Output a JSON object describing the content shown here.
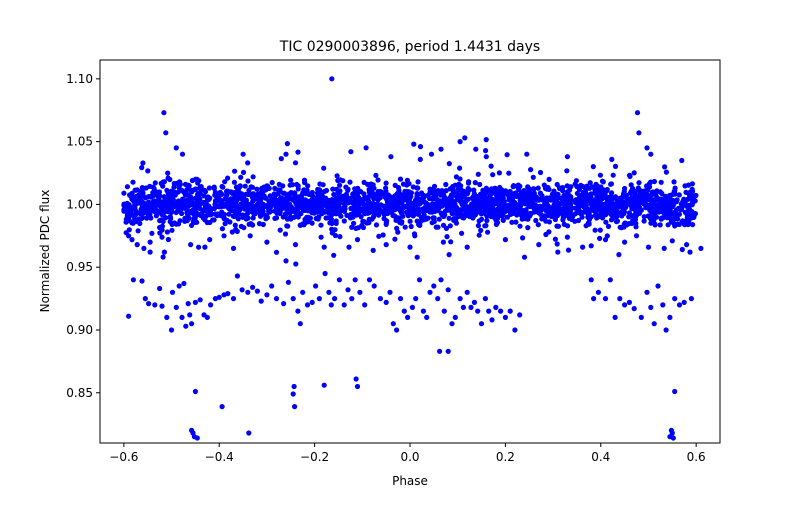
{
  "chart_data": {
    "type": "scatter",
    "title": "TIC 0290003896, period 1.4431 days",
    "xlabel": "Phase",
    "ylabel": "Normalized PDC flux",
    "xlim": [
      -0.65,
      0.65
    ],
    "ylim": [
      0.81,
      1.115
    ],
    "x_ticks": [
      -0.6,
      -0.4,
      -0.2,
      0.0,
      0.2,
      0.4,
      0.6
    ],
    "x_tick_labels": [
      "−0.6",
      "−0.4",
      "−0.2",
      "0.0",
      "0.2",
      "0.4",
      "0.6"
    ],
    "y_ticks": [
      0.85,
      0.9,
      0.95,
      1.0,
      1.05,
      1.1
    ],
    "y_tick_labels": [
      "0.85",
      "0.90",
      "0.95",
      "1.00",
      "1.05",
      "1.10"
    ],
    "marker_color": "#0000ff",
    "dense_band": {
      "x_range": [
        -0.6,
        0.6
      ],
      "center": 1.0,
      "typical_spread": [
        0.985,
        1.015
      ],
      "sample_count": 2600
    },
    "series": [
      {
        "name": "flux",
        "points": [
          [
            -0.164,
            1.1
          ],
          [
            -0.516,
            1.073
          ],
          [
            0.477,
            1.073
          ],
          [
            -0.512,
            1.057
          ],
          [
            0.48,
            1.057
          ],
          [
            -0.49,
            1.045
          ],
          [
            0.497,
            1.045
          ],
          [
            0.115,
            1.053
          ],
          [
            0.105,
            1.05
          ],
          [
            0.008,
            1.048
          ],
          [
            0.022,
            1.046
          ],
          [
            0.065,
            1.044
          ],
          [
            0.138,
            1.044
          ],
          [
            -0.477,
            1.04
          ],
          [
            0.505,
            1.04
          ],
          [
            -0.35,
            1.04
          ],
          [
            -0.26,
            1.04
          ],
          [
            -0.124,
            1.042
          ],
          [
            0.045,
            1.04
          ],
          [
            -0.04,
            1.038
          ],
          [
            0.16,
            1.038
          ],
          [
            0.245,
            1.04
          ],
          [
            0.33,
            1.038
          ],
          [
            0.57,
            1.035
          ],
          [
            -0.56,
            1.033
          ],
          [
            -0.59,
            0.975
          ],
          [
            -0.583,
            0.972
          ],
          [
            -0.572,
            0.968
          ],
          [
            -0.558,
            0.965
          ],
          [
            -0.545,
            0.97
          ],
          [
            -0.52,
            0.974
          ],
          [
            -0.46,
            0.968
          ],
          [
            -0.42,
            0.972
          ],
          [
            -0.37,
            0.965
          ],
          [
            -0.3,
            0.97
          ],
          [
            -0.24,
            0.968
          ],
          [
            -0.18,
            0.966
          ],
          [
            -0.11,
            0.972
          ],
          [
            -0.05,
            0.968
          ],
          [
            0.01,
            0.975
          ],
          [
            0.07,
            0.97
          ],
          [
            0.12,
            0.966
          ],
          [
            0.2,
            0.972
          ],
          [
            0.27,
            0.968
          ],
          [
            0.33,
            0.974
          ],
          [
            0.38,
            0.967
          ],
          [
            0.41,
            0.972
          ],
          [
            0.45,
            0.97
          ],
          [
            0.5,
            0.966
          ],
          [
            0.55,
            0.971
          ],
          [
            0.58,
            0.968
          ],
          [
            -0.515,
            0.962
          ],
          [
            -0.43,
            0.966
          ],
          [
            -0.39,
            0.975
          ],
          [
            0.0,
            0.966
          ],
          [
            0.015,
            0.958
          ],
          [
            0.082,
            0.96
          ],
          [
            0.24,
            0.958
          ],
          [
            0.475,
            0.975
          ],
          [
            0.587,
            0.962
          ],
          [
            -0.128,
            0.966
          ],
          [
            0.362,
            0.966
          ],
          [
            0.438,
            0.96
          ],
          [
            0.533,
            0.965
          ],
          [
            -0.26,
            0.955
          ],
          [
            -0.545,
            0.962
          ],
          [
            0.61,
            0.965
          ],
          [
            0.285,
            0.976
          ],
          [
            0.31,
            0.962
          ],
          [
            -0.335,
            0.975
          ],
          [
            -0.59,
            0.911
          ],
          [
            -0.58,
            0.94
          ],
          [
            -0.562,
            0.939
          ],
          [
            -0.555,
            0.925
          ],
          [
            -0.548,
            0.921
          ],
          [
            -0.535,
            0.92
          ],
          [
            -0.525,
            0.933
          ],
          [
            -0.52,
            0.919
          ],
          [
            -0.51,
            0.91
          ],
          [
            -0.498,
            0.93
          ],
          [
            -0.49,
            0.918
          ],
          [
            -0.484,
            0.935
          ],
          [
            -0.478,
            0.91
          ],
          [
            -0.47,
            0.903
          ],
          [
            -0.465,
            0.921
          ],
          [
            -0.458,
            0.905
          ],
          [
            -0.45,
            0.922
          ],
          [
            -0.44,
            0.924
          ],
          [
            -0.432,
            0.912
          ],
          [
            -0.425,
            0.91
          ],
          [
            -0.418,
            0.92
          ],
          [
            -0.408,
            0.925
          ],
          [
            -0.4,
            0.926
          ],
          [
            -0.39,
            0.928
          ],
          [
            -0.382,
            0.929
          ],
          [
            -0.37,
            0.925
          ],
          [
            -0.362,
            0.943
          ],
          [
            -0.352,
            0.932
          ],
          [
            -0.34,
            0.93
          ],
          [
            -0.33,
            0.934
          ],
          [
            -0.32,
            0.931
          ],
          [
            -0.312,
            0.923
          ],
          [
            -0.3,
            0.928
          ],
          [
            -0.29,
            0.935
          ],
          [
            -0.28,
            0.925
          ],
          [
            -0.265,
            0.921
          ],
          [
            -0.255,
            0.938
          ],
          [
            -0.245,
            0.925
          ],
          [
            -0.235,
            0.915
          ],
          [
            -0.23,
            0.905
          ],
          [
            -0.225,
            0.93
          ],
          [
            -0.215,
            0.92
          ],
          [
            -0.205,
            0.922
          ],
          [
            -0.198,
            0.935
          ],
          [
            -0.19,
            0.925
          ],
          [
            -0.178,
            0.945
          ],
          [
            -0.17,
            0.93
          ],
          [
            -0.165,
            0.92
          ],
          [
            -0.158,
            0.925
          ],
          [
            -0.148,
            0.94
          ],
          [
            -0.138,
            0.92
          ],
          [
            -0.13,
            0.932
          ],
          [
            -0.122,
            0.925
          ],
          [
            -0.115,
            0.94
          ],
          [
            -0.105,
            0.93
          ],
          [
            -0.095,
            0.92
          ],
          [
            -0.085,
            0.94
          ],
          [
            -0.075,
            0.935
          ],
          [
            -0.062,
            0.925
          ],
          [
            -0.05,
            0.922
          ],
          [
            -0.042,
            0.93
          ],
          [
            -0.035,
            0.905
          ],
          [
            -0.028,
            0.9
          ],
          [
            -0.02,
            0.925
          ],
          [
            -0.012,
            0.915
          ],
          [
            -0.005,
            0.91
          ],
          [
            0.005,
            0.918
          ],
          [
            0.012,
            0.925
          ],
          [
            0.02,
            0.94
          ],
          [
            0.028,
            0.915
          ],
          [
            0.035,
            0.91
          ],
          [
            0.042,
            0.93
          ],
          [
            0.05,
            0.935
          ],
          [
            0.058,
            0.925
          ],
          [
            0.065,
            0.94
          ],
          [
            0.072,
            0.915
          ],
          [
            0.08,
            0.932
          ],
          [
            0.088,
            0.905
          ],
          [
            0.095,
            0.91
          ],
          [
            0.105,
            0.925
          ],
          [
            0.112,
            0.918
          ],
          [
            0.12,
            0.93
          ],
          [
            0.128,
            0.918
          ],
          [
            0.135,
            0.922
          ],
          [
            0.142,
            0.915
          ],
          [
            0.15,
            0.905
          ],
          [
            0.158,
            0.925
          ],
          [
            0.165,
            0.915
          ],
          [
            0.172,
            0.908
          ],
          [
            0.18,
            0.918
          ],
          [
            0.19,
            0.915
          ],
          [
            0.2,
            0.91
          ],
          [
            0.21,
            0.915
          ],
          [
            0.22,
            0.9
          ],
          [
            0.23,
            0.912
          ],
          [
            -0.5,
            0.9
          ],
          [
            -0.474,
            0.937
          ],
          [
            -0.462,
            0.912
          ],
          [
            0.38,
            0.94
          ],
          [
            0.395,
            0.93
          ],
          [
            0.41,
            0.925
          ],
          [
            0.42,
            0.94
          ],
          [
            0.43,
            0.91
          ],
          [
            0.44,
            0.925
          ],
          [
            0.45,
            0.92
          ],
          [
            0.46,
            0.922
          ],
          [
            0.47,
            0.917
          ],
          [
            0.485,
            0.91
          ],
          [
            0.497,
            0.93
          ],
          [
            0.505,
            0.918
          ],
          [
            0.512,
            0.905
          ],
          [
            0.52,
            0.935
          ],
          [
            0.53,
            0.92
          ],
          [
            0.537,
            0.9
          ],
          [
            0.545,
            0.91
          ],
          [
            0.555,
            0.925
          ],
          [
            0.565,
            0.92
          ],
          [
            0.575,
            0.922
          ],
          [
            0.59,
            0.925
          ],
          [
            0.385,
            0.925
          ],
          [
            -0.45,
            0.851
          ],
          [
            -0.455,
            0.818
          ],
          [
            -0.452,
            0.815
          ],
          [
            -0.458,
            0.82
          ],
          [
            -0.394,
            0.839
          ],
          [
            -0.338,
            0.818
          ],
          [
            -0.243,
            0.855
          ],
          [
            -0.245,
            0.849
          ],
          [
            -0.242,
            0.839
          ],
          [
            -0.18,
            0.856
          ],
          [
            -0.113,
            0.861
          ],
          [
            -0.11,
            0.855
          ],
          [
            0.062,
            0.883
          ],
          [
            0.08,
            0.883
          ],
          [
            0.555,
            0.851
          ],
          [
            0.545,
            0.815
          ],
          [
            0.55,
            0.818
          ],
          [
            0.552,
            0.814
          ],
          [
            -0.446,
            0.814
          ],
          [
            0.548,
            0.82
          ]
        ]
      }
    ]
  }
}
